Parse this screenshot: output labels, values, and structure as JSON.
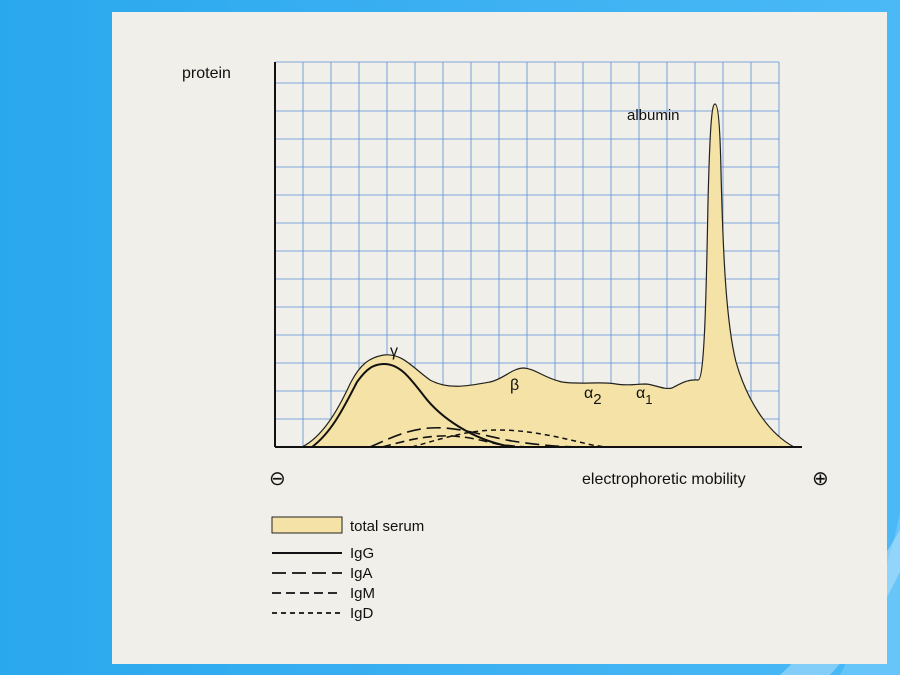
{
  "figure": {
    "y_axis_label": "protein",
    "x_axis_label": "electrophoretic mobility",
    "negative_symbol": "⊖",
    "positive_symbol": "⊕",
    "peak_labels": {
      "albumin": "albumin",
      "gamma": "γ",
      "beta": "β",
      "alpha2": "α",
      "alpha2_sub": "2",
      "alpha1": "α",
      "alpha1_sub": "1"
    },
    "legend": [
      {
        "label": "total serum",
        "style": "fill"
      },
      {
        "label": "IgG",
        "style": "solid"
      },
      {
        "label": "IgA",
        "style": "dash-long"
      },
      {
        "label": "IgM",
        "style": "dash-med"
      },
      {
        "label": "IgD",
        "style": "dash-short"
      }
    ]
  },
  "colors": {
    "background": "#2aa8ee",
    "panel": "#f1efe9",
    "grid": "#5a8fd6",
    "serum_fill": "#f5e2a6",
    "line": "#111111"
  }
}
